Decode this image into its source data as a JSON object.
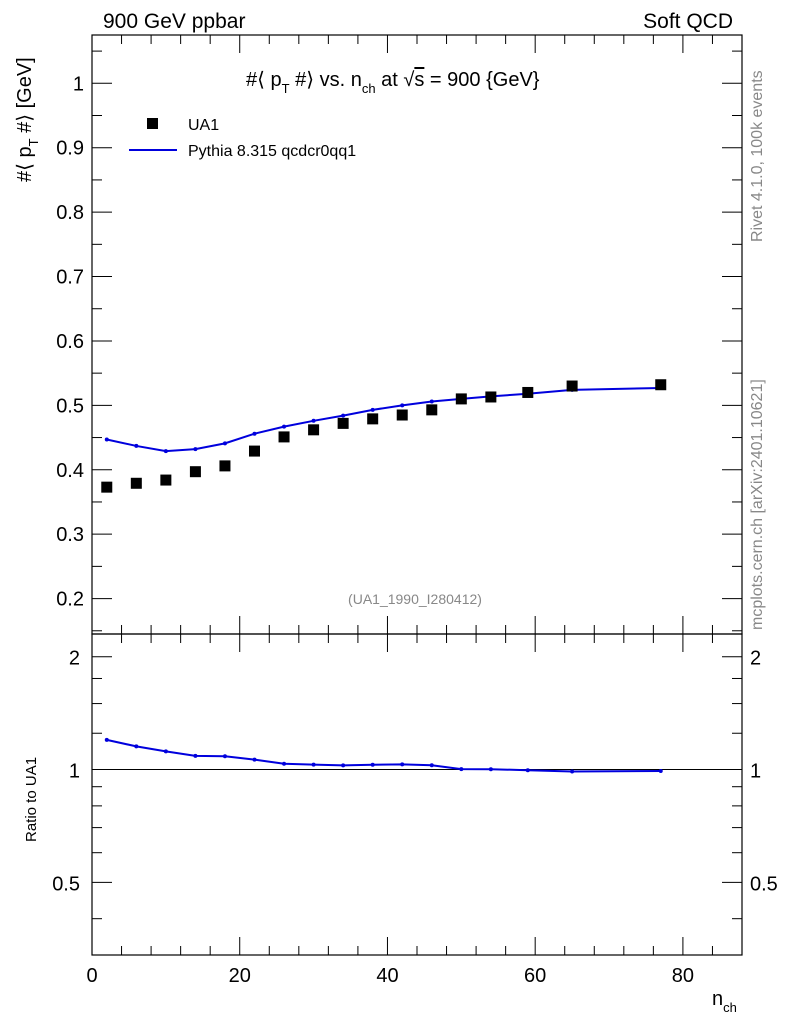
{
  "header": {
    "left": "900 GeV ppbar",
    "right": "Soft QCD"
  },
  "side_text": {
    "rivet": "Rivet 4.1.0,  100k events",
    "mcplots": "mcplots.cern.ch [arXiv:2401.10621]"
  },
  "chart_data": {
    "type": "scatter",
    "title": "#⟨ p_T #⟩ vs. n_ch at √s = 900 {GeV}",
    "title_parts": {
      "main_a": "#⟨ p",
      "sub_a": "T",
      "main_b": " #⟩ vs. n",
      "sub_b": "ch",
      "main_c": " at ",
      "sqrt": "√",
      "s": "s",
      "main_d": " = 900 {GeV}"
    },
    "ylabel": "#⟨ p_T #⟩ [GeV]",
    "ylabel_parts": {
      "a": "#⟨ p",
      "sub": "T",
      "b": " #⟩ [GeV]"
    },
    "xlabel": "n_ch",
    "xlabel_parts": {
      "main": "n",
      "sub": "ch"
    },
    "ratio_ylabel": "Ratio to UA1",
    "analysis_tag": "(UA1_1990_I280412)",
    "xlim": [
      0,
      88
    ],
    "ylim": [
      0.145,
      1.075
    ],
    "ratio_ylim": [
      0.32,
      2.3
    ],
    "ratio_scale": "log",
    "x_ticks": [
      0,
      20,
      40,
      60,
      80
    ],
    "x_tick_labels": [
      "0",
      "20",
      "40",
      "60",
      "80"
    ],
    "y_ticks": [
      0.2,
      0.3,
      0.4,
      0.5,
      0.6,
      0.7,
      0.8,
      0.9,
      1
    ],
    "y_tick_labels": [
      "0.2",
      "0.3",
      "0.4",
      "0.5",
      "0.6",
      "0.7",
      "0.8",
      "0.9",
      "1"
    ],
    "ratio_ticks": [
      0.5,
      1,
      2
    ],
    "ratio_tick_labels": [
      "0.5",
      "1",
      "2"
    ],
    "legend_position": "top-left",
    "legend": [
      "UA1",
      "Pythia 8.315 qcdcr0qq1"
    ],
    "series": [
      {
        "name": "UA1",
        "style": "markers",
        "color": "#000000",
        "x": [
          2,
          6,
          10,
          14,
          18,
          22,
          26,
          30,
          34,
          38,
          42,
          46,
          50,
          54,
          59,
          65,
          77
        ],
        "y": [
          0.373,
          0.379,
          0.384,
          0.397,
          0.406,
          0.429,
          0.451,
          0.462,
          0.472,
          0.479,
          0.485,
          0.493,
          0.51,
          0.513,
          0.52,
          0.53,
          0.532
        ]
      },
      {
        "name": "Pythia 8.315 qcdcr0qq1",
        "style": "line",
        "color": "#0000dd",
        "x": [
          2,
          6,
          10,
          14,
          18,
          22,
          26,
          30,
          34,
          38,
          42,
          46,
          50,
          54,
          59,
          65,
          77
        ],
        "y": [
          0.447,
          0.437,
          0.429,
          0.432,
          0.441,
          0.456,
          0.467,
          0.476,
          0.484,
          0.493,
          0.5,
          0.506,
          0.51,
          0.514,
          0.518,
          0.524,
          0.527
        ],
        "ratio": [
          1.2,
          1.153,
          1.118,
          1.088,
          1.085,
          1.063,
          1.036,
          1.031,
          1.026,
          1.03,
          1.032,
          1.027,
          1.003,
          1.002,
          0.996,
          0.988,
          0.991
        ]
      }
    ]
  }
}
